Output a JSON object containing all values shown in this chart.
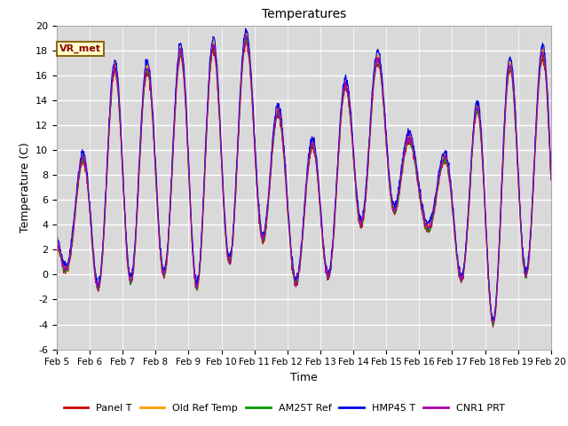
{
  "title": "Temperatures",
  "xlabel": "Time",
  "ylabel": "Temperature (C)",
  "ylim": [
    -6,
    20
  ],
  "xlim": [
    0,
    15
  ],
  "legend_label": "VR_met",
  "series_labels": [
    "Panel T",
    "Old Ref Temp",
    "AM25T Ref",
    "HMP45 T",
    "CNR1 PRT"
  ],
  "series_colors": [
    "#cc0000",
    "#ff9900",
    "#009900",
    "#0000ee",
    "#aa00aa"
  ],
  "background_color": "#d9d9d9",
  "xtick_labels": [
    "Feb 5",
    "Feb 6",
    "Feb 7",
    "Feb 8",
    "Feb 9",
    "Feb 10",
    "Feb 11",
    "Feb 12",
    "Feb 13",
    "Feb 14",
    "Feb 15",
    "Feb 16",
    "Feb 17",
    "Feb 18",
    "Feb 19",
    "Feb 20"
  ],
  "ytick_values": [
    -6,
    -4,
    -2,
    0,
    2,
    4,
    6,
    8,
    10,
    12,
    14,
    16,
    18,
    20
  ],
  "n_points": 1440,
  "figsize": [
    6.4,
    4.8
  ],
  "dpi": 100
}
